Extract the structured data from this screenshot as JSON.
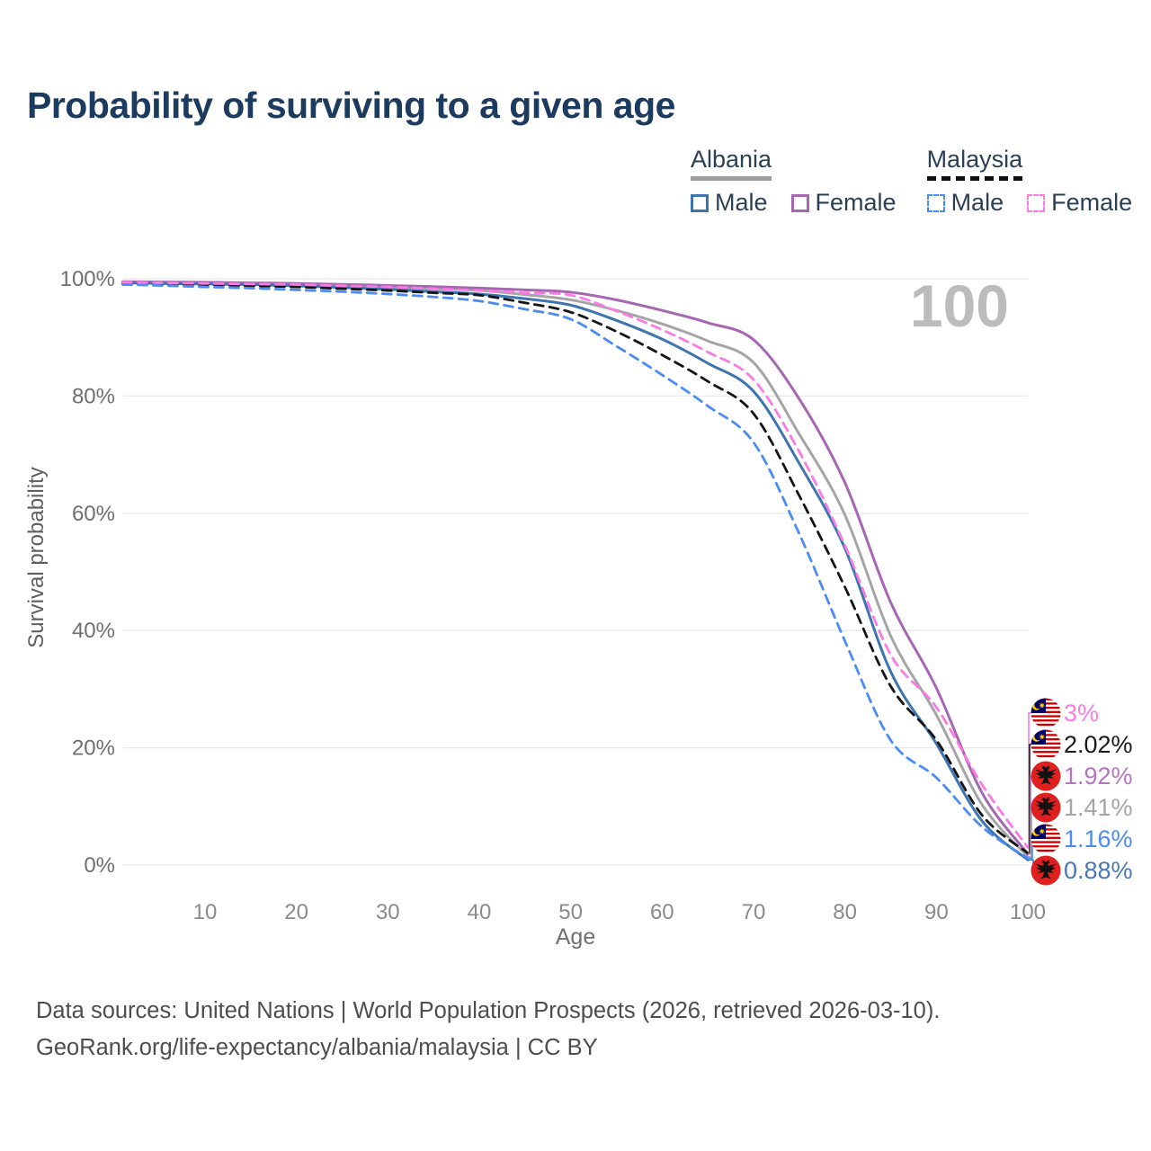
{
  "title": "Probability of surviving to a given age",
  "legend": {
    "groups": [
      {
        "country": "Albania",
        "line_style": "solid",
        "underline_color": "#9e9e9e",
        "items": [
          {
            "label": "Male",
            "color": "#3e74b0"
          },
          {
            "label": "Female",
            "color": "#a667b2"
          }
        ]
      },
      {
        "country": "Malaysia",
        "line_style": "dashed",
        "underline_color": "#111111",
        "items": [
          {
            "label": "Male",
            "color": "#4a8bf5"
          },
          {
            "label": "Female",
            "color": "#fb7ae3"
          }
        ]
      }
    ]
  },
  "chart_data": {
    "type": "line",
    "title": "Probability of surviving to a given age",
    "xlabel": "Age",
    "ylabel": "Survival probability",
    "xlim": [
      1,
      100
    ],
    "ylim": [
      0,
      100
    ],
    "grid": true,
    "age_marker": "100",
    "x_ticks": [
      10,
      20,
      30,
      40,
      50,
      60,
      70,
      80,
      90,
      100
    ],
    "y_tick_values": [
      0,
      20,
      40,
      60,
      80,
      100
    ],
    "y_tick_labels": [
      "0%",
      "20%",
      "40%",
      "60%",
      "80%",
      "100%"
    ],
    "x": [
      1,
      5,
      10,
      15,
      20,
      25,
      30,
      35,
      40,
      45,
      50,
      55,
      60,
      65,
      70,
      75,
      80,
      85,
      90,
      95,
      100
    ],
    "series": [
      {
        "name": "Albania",
        "country": "Albania",
        "sex": "Both",
        "color": "#a5a5a5",
        "dash": false,
        "values": [
          99.4,
          99.3,
          99.25,
          99.15,
          99.0,
          98.8,
          98.55,
          98.3,
          98.0,
          97.3,
          96.4,
          94.6,
          92.3,
          89.4,
          85.7,
          73.5,
          59.7,
          39.1,
          25.6,
          10.3,
          1.41
        ]
      },
      {
        "name": "Albania Female",
        "country": "Albania",
        "sex": "Female",
        "color": "#a667b2",
        "dash": false,
        "values": [
          99.5,
          99.45,
          99.4,
          99.3,
          99.2,
          99.05,
          98.85,
          98.65,
          98.4,
          98.1,
          97.7,
          96.4,
          94.6,
          92.5,
          89.6,
          79.5,
          65.2,
          44.8,
          30.2,
          12.3,
          1.92
        ]
      },
      {
        "name": "Albania Male",
        "country": "Albania",
        "sex": "Male",
        "color": "#3e74b0",
        "dash": false,
        "values": [
          99.3,
          99.2,
          99.1,
          99.0,
          98.8,
          98.5,
          98.2,
          97.8,
          97.4,
          96.6,
          95.5,
          92.9,
          89.7,
          85.6,
          80.8,
          68.5,
          54.0,
          33.0,
          20.7,
          7.5,
          0.88
        ]
      },
      {
        "name": "Malaysia",
        "country": "Malaysia",
        "sex": "Both",
        "color": "#151515",
        "dash": true,
        "values": [
          99.2,
          99.1,
          99.0,
          98.8,
          98.6,
          98.3,
          98.0,
          97.6,
          97.2,
          95.9,
          94.3,
          91.0,
          87.0,
          82.5,
          77.0,
          63.0,
          47.4,
          30.5,
          21.3,
          8.5,
          2.02
        ]
      },
      {
        "name": "Malaysia Male",
        "country": "Malaysia",
        "sex": "Male",
        "color": "#4a8bf5",
        "dash": true,
        "values": [
          99.0,
          98.85,
          98.6,
          98.4,
          98.1,
          97.8,
          97.4,
          96.9,
          96.2,
          94.8,
          93.1,
          88.5,
          83.6,
          78.3,
          72.1,
          56.5,
          38.2,
          21.3,
          14.9,
          6.5,
          1.16
        ]
      },
      {
        "name": "Malaysia Female",
        "country": "Malaysia",
        "sex": "Female",
        "color": "#fb7ae3",
        "dash": true,
        "values": [
          99.4,
          99.3,
          99.2,
          99.1,
          99.0,
          98.8,
          98.6,
          98.3,
          98.0,
          97.6,
          97.2,
          94.5,
          91.3,
          87.5,
          82.8,
          70.5,
          54.5,
          35.9,
          26.9,
          13.7,
          3.0
        ]
      }
    ],
    "end_labels": [
      {
        "text": "3%",
        "series": "Malaysia Female",
        "flag": "malaysia",
        "color": "#fb7ae3"
      },
      {
        "text": "2.02%",
        "series": "Malaysia",
        "flag": "malaysia",
        "color": "#1a1a1a"
      },
      {
        "text": "1.92%",
        "series": "Albania Female",
        "flag": "albania",
        "color": "#b573c2"
      },
      {
        "text": "1.41%",
        "series": "Albania",
        "flag": "albania",
        "color": "#a5a5a5"
      },
      {
        "text": "1.16%",
        "series": "Malaysia Male",
        "flag": "malaysia",
        "color": "#4a8bf5"
      },
      {
        "text": "0.88%",
        "series": "Albania Male",
        "flag": "albania",
        "color": "#4a78b5"
      }
    ]
  },
  "footer": {
    "line1": "Data sources: United Nations | World Population Prospects (2026, retrieved 2026-03-10).",
    "line2": "GeoRank.org/life-expectancy/albania/malaysia | CC BY"
  }
}
